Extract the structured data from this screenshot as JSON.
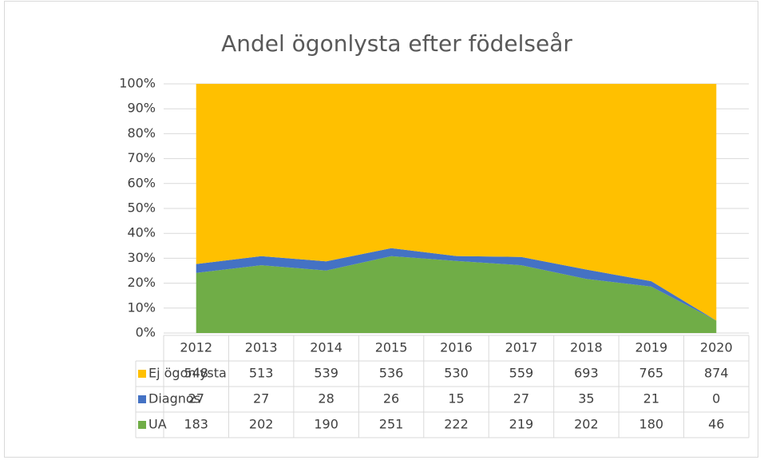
{
  "chart_data": {
    "type": "stacked-area-100",
    "title": "Andel ögonlysta efter födelseår",
    "categories": [
      "2012",
      "2013",
      "2014",
      "2015",
      "2016",
      "2017",
      "2018",
      "2019",
      "2020"
    ],
    "series": [
      {
        "name": "Ej ögonlysta",
        "color": "#ffc000",
        "values": [
          548,
          513,
          539,
          536,
          530,
          559,
          693,
          765,
          874
        ]
      },
      {
        "name": "Diagnos",
        "color": "#4472c4",
        "values": [
          27,
          27,
          28,
          26,
          15,
          27,
          35,
          21,
          0
        ]
      },
      {
        "name": "UA",
        "color": "#70ad47",
        "values": [
          183,
          202,
          190,
          251,
          222,
          219,
          202,
          180,
          46
        ]
      }
    ],
    "ylim": [
      0,
      100
    ],
    "yticks": [
      {
        "value": 0,
        "label": "0%"
      },
      {
        "value": 10,
        "label": "10%"
      },
      {
        "value": 20,
        "label": "20%"
      },
      {
        "value": 30,
        "label": "30%"
      },
      {
        "value": 40,
        "label": "40%"
      },
      {
        "value": 50,
        "label": "50%"
      },
      {
        "value": 60,
        "label": "60%"
      },
      {
        "value": 70,
        "label": "70%"
      },
      {
        "value": 80,
        "label": "80%"
      },
      {
        "value": 90,
        "label": "90%"
      },
      {
        "value": 100,
        "label": "100%"
      }
    ],
    "grid": true
  }
}
